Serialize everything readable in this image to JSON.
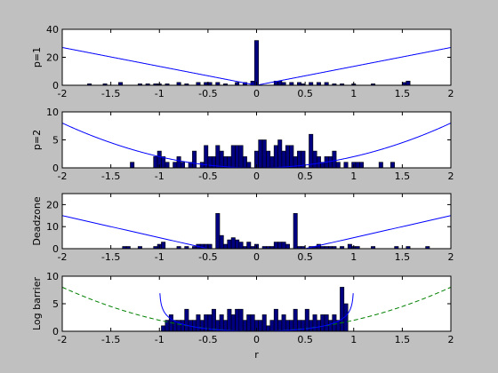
{
  "window": {
    "background": "#c0c0c0"
  },
  "chart_data": [
    {
      "type": "bar",
      "ylabel": "p=1",
      "xlabel": "",
      "xlim": [
        -2,
        2
      ],
      "ylim": [
        0,
        40
      ],
      "yticks": [
        0,
        20,
        40
      ],
      "xticks": [
        -2,
        -1.5,
        -1,
        -0.5,
        0,
        0.5,
        1,
        1.5,
        2
      ],
      "bin_width": 0.04,
      "bar_color": "#000080",
      "curve": {
        "kind": "abs",
        "power": 1,
        "scale": 13.5,
        "style": "solid",
        "color": "#0000ff"
      },
      "bars": [
        {
          "x": -1.72,
          "y": 1
        },
        {
          "x": -1.56,
          "y": 1
        },
        {
          "x": -1.4,
          "y": 2
        },
        {
          "x": -1.2,
          "y": 1
        },
        {
          "x": -1.12,
          "y": 1
        },
        {
          "x": -1.04,
          "y": 1
        },
        {
          "x": -1.0,
          "y": 1
        },
        {
          "x": -0.92,
          "y": 1
        },
        {
          "x": -0.8,
          "y": 2
        },
        {
          "x": -0.72,
          "y": 1
        },
        {
          "x": -0.6,
          "y": 2
        },
        {
          "x": -0.52,
          "y": 2
        },
        {
          "x": -0.48,
          "y": 2
        },
        {
          "x": -0.4,
          "y": 2
        },
        {
          "x": -0.32,
          "y": 1
        },
        {
          "x": -0.2,
          "y": 2
        },
        {
          "x": -0.12,
          "y": 2
        },
        {
          "x": -0.04,
          "y": 3
        },
        {
          "x": 0.0,
          "y": 32
        },
        {
          "x": 0.2,
          "y": 3
        },
        {
          "x": 0.24,
          "y": 3
        },
        {
          "x": 0.28,
          "y": 2
        },
        {
          "x": 0.36,
          "y": 2
        },
        {
          "x": 0.44,
          "y": 2
        },
        {
          "x": 0.48,
          "y": 1
        },
        {
          "x": 0.56,
          "y": 2
        },
        {
          "x": 0.64,
          "y": 2
        },
        {
          "x": 0.72,
          "y": 2
        },
        {
          "x": 0.8,
          "y": 1
        },
        {
          "x": 0.88,
          "y": 1
        },
        {
          "x": 1.0,
          "y": 1
        },
        {
          "x": 1.2,
          "y": 1
        },
        {
          "x": 1.52,
          "y": 2
        },
        {
          "x": 1.56,
          "y": 3
        }
      ]
    },
    {
      "type": "bar",
      "ylabel": "p=2",
      "xlabel": "",
      "xlim": [
        -2,
        2
      ],
      "ylim": [
        0,
        10
      ],
      "yticks": [
        0,
        5,
        10
      ],
      "xticks": [
        -2,
        -1.5,
        -1,
        -0.5,
        0,
        0.5,
        1,
        1.5,
        2
      ],
      "bin_width": 0.04,
      "bar_color": "#000080",
      "curve": {
        "kind": "abs",
        "power": 2,
        "scale": 2.0,
        "style": "solid",
        "color": "#0000ff"
      },
      "bars": [
        {
          "x": -1.28,
          "y": 1
        },
        {
          "x": -1.04,
          "y": 2
        },
        {
          "x": -1.0,
          "y": 3
        },
        {
          "x": -0.96,
          "y": 2
        },
        {
          "x": -0.92,
          "y": 1
        },
        {
          "x": -0.84,
          "y": 1
        },
        {
          "x": -0.8,
          "y": 2
        },
        {
          "x": -0.76,
          "y": 1
        },
        {
          "x": -0.68,
          "y": 1
        },
        {
          "x": -0.64,
          "y": 3
        },
        {
          "x": -0.56,
          "y": 1
        },
        {
          "x": -0.52,
          "y": 4
        },
        {
          "x": -0.48,
          "y": 2
        },
        {
          "x": -0.44,
          "y": 2
        },
        {
          "x": -0.4,
          "y": 4
        },
        {
          "x": -0.36,
          "y": 3
        },
        {
          "x": -0.32,
          "y": 2
        },
        {
          "x": -0.28,
          "y": 2
        },
        {
          "x": -0.24,
          "y": 4
        },
        {
          "x": -0.2,
          "y": 4
        },
        {
          "x": -0.16,
          "y": 4
        },
        {
          "x": -0.12,
          "y": 2
        },
        {
          "x": -0.08,
          "y": 1
        },
        {
          "x": 0.0,
          "y": 3
        },
        {
          "x": 0.04,
          "y": 5
        },
        {
          "x": 0.08,
          "y": 5
        },
        {
          "x": 0.12,
          "y": 3
        },
        {
          "x": 0.16,
          "y": 2
        },
        {
          "x": 0.2,
          "y": 4
        },
        {
          "x": 0.24,
          "y": 5
        },
        {
          "x": 0.28,
          "y": 3
        },
        {
          "x": 0.32,
          "y": 4
        },
        {
          "x": 0.36,
          "y": 4
        },
        {
          "x": 0.4,
          "y": 2
        },
        {
          "x": 0.44,
          "y": 3
        },
        {
          "x": 0.48,
          "y": 3
        },
        {
          "x": 0.56,
          "y": 6
        },
        {
          "x": 0.6,
          "y": 3
        },
        {
          "x": 0.64,
          "y": 2
        },
        {
          "x": 0.68,
          "y": 1
        },
        {
          "x": 0.72,
          "y": 2
        },
        {
          "x": 0.76,
          "y": 2
        },
        {
          "x": 0.8,
          "y": 3
        },
        {
          "x": 0.84,
          "y": 1
        },
        {
          "x": 0.92,
          "y": 1
        },
        {
          "x": 1.0,
          "y": 1
        },
        {
          "x": 1.04,
          "y": 1
        },
        {
          "x": 1.08,
          "y": 1
        },
        {
          "x": 1.28,
          "y": 1
        },
        {
          "x": 1.4,
          "y": 1
        }
      ]
    },
    {
      "type": "bar",
      "ylabel": "Deadzone",
      "xlabel": "",
      "xlim": [
        -2,
        2
      ],
      "ylim": [
        0,
        25
      ],
      "yticks": [
        0,
        10,
        20
      ],
      "xticks": [
        -2,
        -1.5,
        -1,
        -0.5,
        0,
        0.5,
        1,
        1.5,
        2
      ],
      "bin_width": 0.04,
      "bar_color": "#000080",
      "curve": {
        "kind": "deadzone",
        "a": 0.5,
        "scale": 10.0,
        "style": "solid",
        "color": "#0000ff"
      },
      "bars": [
        {
          "x": -1.36,
          "y": 1
        },
        {
          "x": -1.32,
          "y": 1
        },
        {
          "x": -1.2,
          "y": 1
        },
        {
          "x": -1.04,
          "y": 1
        },
        {
          "x": -1.0,
          "y": 2
        },
        {
          "x": -0.96,
          "y": 3
        },
        {
          "x": -0.8,
          "y": 1
        },
        {
          "x": -0.72,
          "y": 1
        },
        {
          "x": -0.64,
          "y": 1
        },
        {
          "x": -0.6,
          "y": 2
        },
        {
          "x": -0.56,
          "y": 2
        },
        {
          "x": -0.52,
          "y": 2
        },
        {
          "x": -0.48,
          "y": 2
        },
        {
          "x": -0.4,
          "y": 16
        },
        {
          "x": -0.36,
          "y": 6
        },
        {
          "x": -0.32,
          "y": 2
        },
        {
          "x": -0.28,
          "y": 4
        },
        {
          "x": -0.24,
          "y": 5
        },
        {
          "x": -0.2,
          "y": 4
        },
        {
          "x": -0.16,
          "y": 3
        },
        {
          "x": -0.12,
          "y": 1
        },
        {
          "x": -0.08,
          "y": 3
        },
        {
          "x": -0.04,
          "y": 1
        },
        {
          "x": 0.0,
          "y": 2
        },
        {
          "x": 0.08,
          "y": 1
        },
        {
          "x": 0.12,
          "y": 1
        },
        {
          "x": 0.16,
          "y": 1
        },
        {
          "x": 0.2,
          "y": 3
        },
        {
          "x": 0.24,
          "y": 3
        },
        {
          "x": 0.28,
          "y": 3
        },
        {
          "x": 0.32,
          "y": 2
        },
        {
          "x": 0.4,
          "y": 16
        },
        {
          "x": 0.44,
          "y": 1
        },
        {
          "x": 0.48,
          "y": 1
        },
        {
          "x": 0.56,
          "y": 1
        },
        {
          "x": 0.6,
          "y": 1
        },
        {
          "x": 0.64,
          "y": 2
        },
        {
          "x": 0.68,
          "y": 1
        },
        {
          "x": 0.72,
          "y": 1
        },
        {
          "x": 0.76,
          "y": 1
        },
        {
          "x": 0.8,
          "y": 1
        },
        {
          "x": 0.88,
          "y": 1
        },
        {
          "x": 0.96,
          "y": 2
        },
        {
          "x": 1.0,
          "y": 1
        },
        {
          "x": 1.04,
          "y": 1
        },
        {
          "x": 1.2,
          "y": 1
        },
        {
          "x": 1.44,
          "y": 1
        },
        {
          "x": 1.56,
          "y": 1
        },
        {
          "x": 1.76,
          "y": 1
        }
      ]
    },
    {
      "type": "bar",
      "ylabel": "Log barrier",
      "xlabel": "r",
      "xlim": [
        -2,
        2
      ],
      "ylim": [
        0,
        10
      ],
      "yticks": [
        0,
        5,
        10
      ],
      "xticks": [
        -2,
        -1.5,
        -1,
        -0.5,
        0,
        0.5,
        1,
        1.5,
        2
      ],
      "bin_width": 0.04,
      "bar_color": "#000080",
      "curve": {
        "kind": "logbarrier",
        "a": 1,
        "scale": 1.5,
        "style": "solid",
        "color": "#0000ff"
      },
      "curve2": {
        "kind": "abs",
        "power": 2,
        "scale": 2.0,
        "style": "dashed",
        "color": "#008000"
      },
      "bars": [
        {
          "x": -0.96,
          "y": 1
        },
        {
          "x": -0.92,
          "y": 2
        },
        {
          "x": -0.88,
          "y": 3
        },
        {
          "x": -0.84,
          "y": 2
        },
        {
          "x": -0.8,
          "y": 2
        },
        {
          "x": -0.76,
          "y": 2
        },
        {
          "x": -0.72,
          "y": 4
        },
        {
          "x": -0.68,
          "y": 2
        },
        {
          "x": -0.64,
          "y": 2
        },
        {
          "x": -0.6,
          "y": 3
        },
        {
          "x": -0.56,
          "y": 2
        },
        {
          "x": -0.52,
          "y": 3
        },
        {
          "x": -0.48,
          "y": 3
        },
        {
          "x": -0.44,
          "y": 4
        },
        {
          "x": -0.4,
          "y": 2
        },
        {
          "x": -0.36,
          "y": 3
        },
        {
          "x": -0.32,
          "y": 2
        },
        {
          "x": -0.28,
          "y": 4
        },
        {
          "x": -0.24,
          "y": 3
        },
        {
          "x": -0.2,
          "y": 4
        },
        {
          "x": -0.16,
          "y": 4
        },
        {
          "x": -0.12,
          "y": 2
        },
        {
          "x": -0.08,
          "y": 3
        },
        {
          "x": -0.04,
          "y": 3
        },
        {
          "x": 0.0,
          "y": 2
        },
        {
          "x": 0.04,
          "y": 2
        },
        {
          "x": 0.08,
          "y": 3
        },
        {
          "x": 0.12,
          "y": 1
        },
        {
          "x": 0.16,
          "y": 2
        },
        {
          "x": 0.2,
          "y": 4
        },
        {
          "x": 0.24,
          "y": 2
        },
        {
          "x": 0.28,
          "y": 3
        },
        {
          "x": 0.32,
          "y": 2
        },
        {
          "x": 0.36,
          "y": 2
        },
        {
          "x": 0.4,
          "y": 4
        },
        {
          "x": 0.44,
          "y": 2
        },
        {
          "x": 0.48,
          "y": 2
        },
        {
          "x": 0.52,
          "y": 4
        },
        {
          "x": 0.56,
          "y": 2
        },
        {
          "x": 0.6,
          "y": 3
        },
        {
          "x": 0.64,
          "y": 2
        },
        {
          "x": 0.68,
          "y": 3
        },
        {
          "x": 0.72,
          "y": 3
        },
        {
          "x": 0.76,
          "y": 2
        },
        {
          "x": 0.8,
          "y": 3
        },
        {
          "x": 0.84,
          "y": 2
        },
        {
          "x": 0.88,
          "y": 8
        },
        {
          "x": 0.92,
          "y": 5
        }
      ]
    }
  ]
}
